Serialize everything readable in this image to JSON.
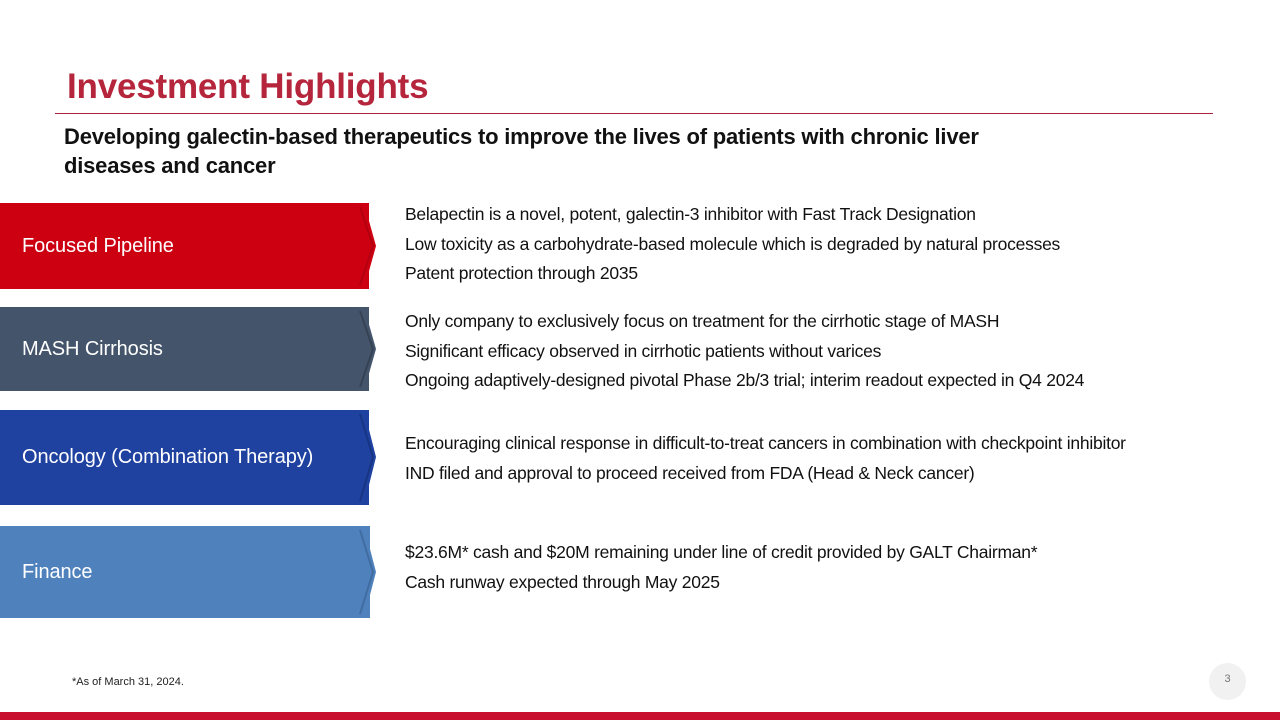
{
  "title": "Investment Highlights",
  "subtitle": "Developing galectin-based therapeutics to improve the lives of patients with chronic liver diseases and cancer",
  "colors": {
    "title": "#b5253c",
    "accent_bar": "#c8102e"
  },
  "sections": [
    {
      "label": "Focused Pipeline",
      "color": "#cc0011",
      "bullets": [
        "Belapectin is a novel, potent, galectin-3 inhibitor with Fast Track Designation",
        "Low toxicity as a carbohydrate-based molecule which is degraded by natural processes",
        "Patent protection through 2035"
      ]
    },
    {
      "label": "MASH Cirrhosis",
      "color": "#44546a",
      "bullets": [
        "Only company to exclusively focus on treatment for the cirrhotic stage of MASH",
        "Significant efficacy observed in cirrhotic patients without varices",
        "Ongoing adaptively-designed pivotal Phase 2b/3 trial; interim readout expected in Q4 2024"
      ]
    },
    {
      "label": "Oncology (Combination Therapy)",
      "color": "#1f41a0",
      "bullets": [
        "Encouraging clinical response in difficult-to-treat cancers in combination with checkpoint inhibitor",
        "IND filed and approval to proceed received from FDA (Head & Neck cancer)"
      ]
    },
    {
      "label": "Finance",
      "color": "#4f81bd",
      "bullets": [
        "$23.6M* cash and $20M remaining under line of credit provided by GALT Chairman*",
        "Cash runway expected through May 2025"
      ]
    }
  ],
  "footnote": "*As of March 31, 2024.",
  "page_number": "3"
}
